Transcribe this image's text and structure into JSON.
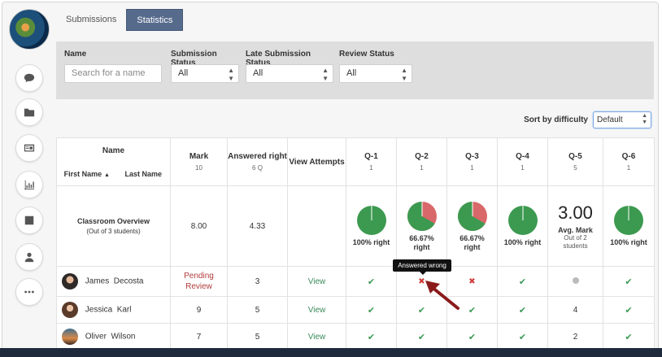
{
  "tabs": [
    {
      "label": "Submissions",
      "active": false
    },
    {
      "label": "Statistics",
      "active": true
    }
  ],
  "sidebar": {
    "icons": [
      "comment-icon",
      "folder-icon",
      "id-card-icon",
      "bar-chart-icon",
      "checkbox-icon",
      "user-icon",
      "more-icon"
    ]
  },
  "filters": {
    "name": {
      "label": "Name",
      "placeholder": "Search for a name"
    },
    "submission_status": {
      "label": "Submission Status",
      "value": "All"
    },
    "late_status": {
      "label": "Late Submission Status",
      "value": "All"
    },
    "review_status": {
      "label": "Review Status",
      "value": "All"
    }
  },
  "sort": {
    "label": "Sort by difficulty",
    "value": "Default"
  },
  "table": {
    "name_header": "Name",
    "first_name": "First Name",
    "last_name": "Last Name",
    "sort_arrow": "▲",
    "mark": {
      "title": "Mark",
      "sub": "10"
    },
    "answered": {
      "title": "Answered right",
      "sub": "6 Q"
    },
    "view_attempts": {
      "title": "View Attempts"
    },
    "questions": [
      {
        "title": "Q-1",
        "sub": "1"
      },
      {
        "title": "Q-2",
        "sub": "1"
      },
      {
        "title": "Q-3",
        "sub": "1"
      },
      {
        "title": "Q-4",
        "sub": "1"
      },
      {
        "title": "Q-5",
        "sub": "5"
      },
      {
        "title": "Q-6",
        "sub": "1"
      }
    ],
    "overview": {
      "title": "Classroom Overview",
      "sub": "(Out of 3 students)",
      "mark": "8.00",
      "answered": "4.33",
      "q1": {
        "label": "100% right",
        "fraction": 1.0
      },
      "q2": {
        "label1": "66.67%",
        "label2": "right",
        "fraction": 0.6667
      },
      "q3": {
        "label1": "66.67%",
        "label2": "right",
        "fraction": 0.6667
      },
      "q4": {
        "label": "100% right",
        "fraction": 1.0
      },
      "q5": {
        "value": "3.00",
        "label": "Avg. Mark",
        "sub1": "Out of 2",
        "sub2": "students"
      },
      "q6": {
        "label": "100% right",
        "fraction": 1.0
      }
    },
    "rows": [
      {
        "first": "James",
        "last": "Decosta",
        "mark1": "Pending",
        "mark2": "Review",
        "answered": "3",
        "view": "View",
        "q": [
          "check",
          "cross",
          "cross",
          "check",
          "dot",
          "check"
        ]
      },
      {
        "first": "Jessica",
        "last": "Karl",
        "mark": "9",
        "answered": "5",
        "view": "View",
        "q": [
          "check",
          "check",
          "check",
          "check",
          "4",
          "check"
        ]
      },
      {
        "first": "Oliver",
        "last": "Wilson",
        "mark": "7",
        "answered": "5",
        "view": "View",
        "q": [
          "check",
          "check",
          "check",
          "check",
          "2",
          "check"
        ]
      }
    ]
  },
  "tooltip": "Answered wrong",
  "colors": {
    "right": "#3c9a50",
    "wrong": "#d9686a",
    "tab_active": "#566a8c",
    "arrow": "#8b1b1b"
  },
  "glyphs": {
    "check": "✔",
    "cross": "✖",
    "select_arrows": "▲▼"
  }
}
